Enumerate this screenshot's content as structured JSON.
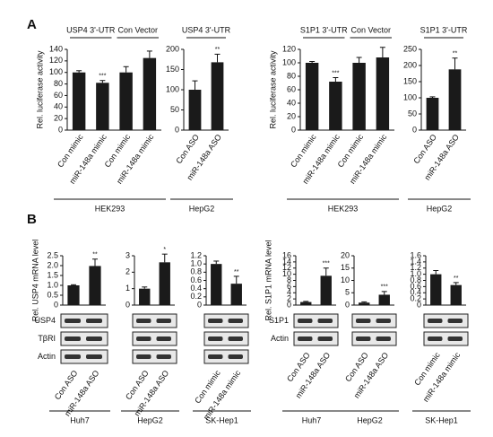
{
  "panel_labels": [
    "A",
    "B"
  ],
  "blot_labels": {
    "usp4": [
      "USP4",
      "TβRI",
      "Actin"
    ],
    "s1p1": [
      "S1P1",
      "Actin"
    ]
  },
  "chart_data": [
    {
      "type": "bar",
      "ylabel": "Rel. luciferase activity",
      "group_titles": [
        "USP4 3'-UTR",
        "Con Vector"
      ],
      "categories": [
        "Con mimic",
        "miR-148a mimic",
        "Con mimic",
        "miR-148a mimic"
      ],
      "values": [
        100,
        82,
        100,
        125
      ],
      "errors": [
        3,
        4,
        10,
        12
      ],
      "annotations": [
        null,
        "***",
        null,
        null
      ],
      "xlabel": "HEK293",
      "color": "#1a1a1a",
      "ylim": [
        0,
        140
      ],
      "yticks": [
        0,
        20,
        40,
        60,
        80,
        100,
        120,
        140
      ]
    },
    {
      "type": "bar",
      "group_titles": [
        "USP4 3'-UTR"
      ],
      "categories": [
        "Con ASO",
        "miR-148a ASO"
      ],
      "values": [
        100,
        168
      ],
      "errors": [
        22,
        20
      ],
      "annotations": [
        null,
        "**"
      ],
      "xlabel": "HepG2",
      "color": "#1a1a1a",
      "ylim": [
        0,
        200
      ],
      "yticks": [
        0,
        50,
        100,
        150,
        200
      ]
    },
    {
      "type": "bar",
      "ylabel": "Rel. luciferase activity",
      "group_titles": [
        "S1P1 3'-UTR",
        "Con Vector"
      ],
      "categories": [
        "Con mimic",
        "miR-148a mimic",
        "Con mimic",
        "miR-148a mimic"
      ],
      "values": [
        100,
        72,
        100,
        108
      ],
      "errors": [
        2,
        6,
        8,
        15
      ],
      "annotations": [
        null,
        "***",
        null,
        null
      ],
      "xlabel": "HEK293",
      "color": "#1a1a1a",
      "ylim": [
        0,
        120
      ],
      "yticks": [
        0,
        20,
        40,
        60,
        80,
        100,
        120
      ]
    },
    {
      "type": "bar",
      "group_titles": [
        "S1P1 3'-UTR"
      ],
      "categories": [
        "Con ASO",
        "miR-148a ASO"
      ],
      "values": [
        100,
        188
      ],
      "errors": [
        3,
        35
      ],
      "annotations": [
        null,
        "**"
      ],
      "xlabel": "HepG2",
      "color": "#1a1a1a",
      "ylim": [
        0,
        250
      ],
      "yticks": [
        0,
        50,
        100,
        150,
        200,
        250
      ]
    },
    {
      "type": "bar",
      "ylabel": "Rel. USP4 mRNA level",
      "categories": [
        "Con ASO",
        "miR-148a ASO"
      ],
      "values": [
        1.0,
        1.98
      ],
      "errors": [
        0.03,
        0.35
      ],
      "annotations": [
        null,
        "**"
      ],
      "xlabel": "Huh7",
      "color": "#1a1a1a",
      "ylim": [
        0,
        2.5
      ],
      "yticks": [
        0,
        0.5,
        {
          "value": 1,
          "label": "1.0"
        },
        1.5,
        {
          "value": 2,
          "label": "2.0"
        },
        2.5
      ]
    },
    {
      "type": "bar",
      "categories": [
        "Con ASO",
        "miR-148a ASO"
      ],
      "values": [
        1.0,
        2.6
      ],
      "errors": [
        0.1,
        0.5
      ],
      "annotations": [
        null,
        "*"
      ],
      "xlabel": "HepG2",
      "color": "#1a1a1a",
      "ylim": [
        0,
        3
      ],
      "yticks": [
        0,
        1,
        2,
        3
      ]
    },
    {
      "type": "bar",
      "categories": [
        "Con mimic",
        "miR-148a mimic"
      ],
      "values": [
        1.0,
        0.52
      ],
      "errors": [
        0.07,
        0.18
      ],
      "annotations": [
        null,
        "**"
      ],
      "xlabel": "SK-Hep1",
      "color": "#1a1a1a",
      "ylim": [
        0,
        1.2
      ],
      "yticks": [
        0,
        0.2,
        0.4,
        0.6,
        0.8,
        {
          "value": 1,
          "label": "1.0"
        },
        1.2
      ]
    },
    {
      "type": "bar",
      "ylabel": "Rel. S1P1 mRNA level",
      "categories": [
        "Con ASO",
        "miR-148a ASO"
      ],
      "values": [
        1,
        9.5
      ],
      "errors": [
        0.2,
        2.5
      ],
      "annotations": [
        null,
        "***"
      ],
      "xlabel": "Huh7",
      "color": "#1a1a1a",
      "ylim": [
        0,
        16
      ],
      "yticks": [
        0,
        2,
        4,
        6,
        8,
        10,
        12,
        14,
        16
      ]
    },
    {
      "type": "bar",
      "categories": [
        "Con ASO",
        "miR-148a ASO"
      ],
      "values": [
        1,
        4.2
      ],
      "errors": [
        0.3,
        1.3
      ],
      "annotations": [
        null,
        "***"
      ],
      "xlabel": "HepG2",
      "color": "#1a1a1a",
      "ylim": [
        0,
        20
      ],
      "yticks": [
        0,
        5,
        10,
        15,
        20
      ]
    },
    {
      "type": "bar",
      "categories": [
        "Con mimic",
        "miR-148a mimic"
      ],
      "values": [
        1.0,
        0.65
      ],
      "errors": [
        0.12,
        0.08
      ],
      "annotations": [
        null,
        "**"
      ],
      "xlabel": "SK-Hep1",
      "color": "#1a1a1a",
      "ylim": [
        0,
        1.6
      ],
      "yticks": [
        0,
        0.2,
        0.4,
        0.6,
        0.8,
        {
          "value": 1,
          "label": "1.0"
        },
        1.2,
        1.4,
        1.6
      ]
    }
  ]
}
